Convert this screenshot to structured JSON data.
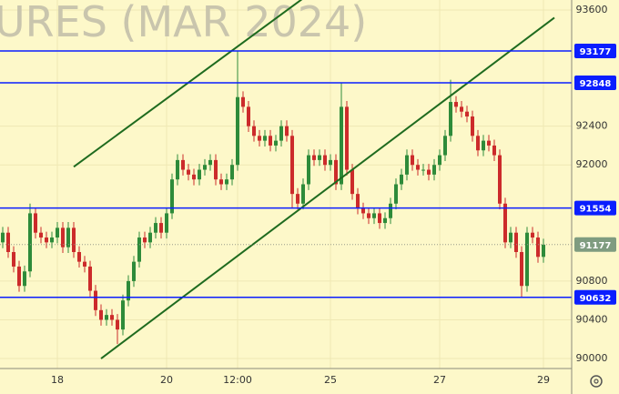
{
  "chart_data": {
    "type": "candlestick",
    "watermark": "URES (MAR 2024)",
    "categories": [
      null,
      null,
      null,
      null,
      null,
      null,
      null,
      null,
      null,
      null,
      "18",
      null,
      null,
      null,
      null,
      null,
      null,
      null,
      null,
      null,
      null,
      null,
      null,
      null,
      null,
      null,
      null,
      null,
      null,
      null,
      "20",
      null,
      null,
      null,
      null,
      null,
      null,
      null,
      null,
      null,
      null,
      null,
      null,
      "12:00",
      null,
      null,
      null,
      null,
      null,
      null,
      null,
      null,
      null,
      null,
      null,
      null,
      null,
      null,
      null,
      null,
      "25",
      null,
      null,
      null,
      null,
      null,
      null,
      null,
      null,
      null,
      null,
      null,
      null,
      null,
      null,
      null,
      null,
      null,
      null,
      null,
      "27",
      null,
      null,
      null,
      null,
      null,
      null,
      null,
      null,
      null,
      null,
      null,
      null,
      null,
      null,
      null,
      null,
      null,
      null,
      "29"
    ],
    "open": [
      91200,
      91300,
      91100,
      90950,
      90750,
      90900,
      91500,
      91300,
      91250,
      91200,
      91250,
      91350,
      91150,
      91350,
      91100,
      91000,
      90950,
      90700,
      90500,
      90400,
      90450,
      90400,
      90300,
      90600,
      90800,
      91000,
      91250,
      91200,
      91300,
      91400,
      91300,
      91500,
      91850,
      92050,
      91950,
      91900,
      91850,
      91950,
      92000,
      92050,
      91850,
      91800,
      91850,
      92000,
      92700,
      92600,
      92400,
      92300,
      92250,
      92300,
      92200,
      92250,
      92400,
      92300,
      91700,
      91600,
      91800,
      92100,
      92050,
      92100,
      92000,
      92050,
      91800,
      92600,
      91950,
      91700,
      91550,
      91500,
      91450,
      91500,
      91400,
      91450,
      91600,
      91800,
      91900,
      92100,
      92000,
      91950,
      91950,
      91900,
      92000,
      92100,
      92300,
      92650,
      92600,
      92550,
      92500,
      92300,
      92150,
      92250,
      92200,
      92100,
      91600,
      91200,
      91300,
      91100,
      90750,
      91300,
      91250,
      91050
    ],
    "high": [
      91360,
      91360,
      91160,
      91010,
      90960,
      91600,
      91560,
      91360,
      91310,
      91310,
      91410,
      91410,
      91410,
      91410,
      91160,
      91060,
      91010,
      90760,
      90560,
      90510,
      90510,
      90460,
      90660,
      90860,
      91060,
      91310,
      91310,
      91360,
      91460,
      91460,
      91560,
      91910,
      92110,
      92110,
      92010,
      91960,
      92010,
      92060,
      92110,
      92110,
      91910,
      91910,
      92060,
      93177,
      92760,
      92660,
      92460,
      92360,
      92360,
      92360,
      92310,
      92460,
      92460,
      92360,
      91760,
      91860,
      92160,
      92160,
      92160,
      92160,
      92110,
      92110,
      92848,
      92660,
      92010,
      91760,
      91610,
      91560,
      91560,
      91560,
      91510,
      91660,
      91860,
      91960,
      92160,
      92160,
      92060,
      92010,
      92010,
      92060,
      92160,
      92360,
      92880,
      92710,
      92660,
      92610,
      92560,
      92360,
      92310,
      92310,
      92260,
      92160,
      91660,
      91360,
      91360,
      91160,
      91360,
      91360,
      91310,
      91237
    ],
    "low": [
      91140,
      91040,
      90890,
      90690,
      90690,
      90840,
      91240,
      91190,
      91140,
      91140,
      91190,
      91090,
      91090,
      91040,
      90940,
      90890,
      90640,
      90440,
      90340,
      90340,
      90340,
      90150,
      90240,
      90540,
      90740,
      90940,
      91140,
      91140,
      91240,
      91240,
      91240,
      91440,
      91790,
      91890,
      91840,
      91790,
      91790,
      91890,
      91940,
      91790,
      91740,
      91740,
      91790,
      91940,
      92540,
      92340,
      92240,
      92190,
      92190,
      92140,
      92140,
      92190,
      92240,
      91550,
      91540,
      91540,
      91740,
      91990,
      91990,
      91940,
      91940,
      91740,
      91740,
      91890,
      91640,
      91490,
      91440,
      91390,
      91390,
      91340,
      91340,
      91390,
      91540,
      91740,
      91840,
      91940,
      91890,
      91890,
      91840,
      91840,
      91940,
      92040,
      92240,
      92540,
      92490,
      92440,
      92240,
      92090,
      92090,
      92140,
      92040,
      91540,
      91140,
      91140,
      91040,
      90632,
      90690,
      91190,
      90990,
      90990
    ],
    "close": [
      91300,
      91100,
      90950,
      90750,
      90900,
      91500,
      91300,
      91250,
      91200,
      91250,
      91350,
      91150,
      91350,
      91100,
      91000,
      90950,
      90700,
      90500,
      90400,
      90450,
      90400,
      90300,
      90600,
      90800,
      91000,
      91250,
      91200,
      91300,
      91400,
      91300,
      91500,
      91850,
      92050,
      91950,
      91900,
      91850,
      91950,
      92000,
      92050,
      91850,
      91800,
      91850,
      92000,
      92700,
      92600,
      92400,
      92300,
      92250,
      92300,
      92200,
      92250,
      92400,
      92300,
      91700,
      91600,
      91800,
      92100,
      92050,
      92100,
      92000,
      92050,
      91800,
      92600,
      91950,
      91700,
      91550,
      91500,
      91450,
      91500,
      91400,
      91450,
      91600,
      91800,
      91900,
      92100,
      92000,
      91950,
      91950,
      91900,
      92000,
      92100,
      92300,
      92650,
      92600,
      92550,
      92500,
      92300,
      92150,
      92250,
      92200,
      92100,
      91600,
      91200,
      91300,
      91100,
      90750,
      91300,
      91250,
      91050,
      91177
    ],
    "up_color": "#2e8b3a",
    "down_color": "#cc2b2b",
    "ylim": [
      89897,
      93703
    ],
    "yticks": [
      90000,
      90400,
      90800,
      92000,
      92400,
      93600
    ],
    "grid": true,
    "levels": [
      93177,
      92848,
      91554,
      90632
    ],
    "level_color": "#0a1eff",
    "last_price": 91177,
    "last_price_color": "#7f9c80",
    "trendlines": [
      {
        "x": [
          13,
          55
        ],
        "y": [
          91980,
          93720
        ],
        "color": "#1f6b1f"
      },
      {
        "x": [
          18,
          101
        ],
        "y": [
          90000,
          93520
        ],
        "color": "#1f6b1f"
      }
    ]
  }
}
